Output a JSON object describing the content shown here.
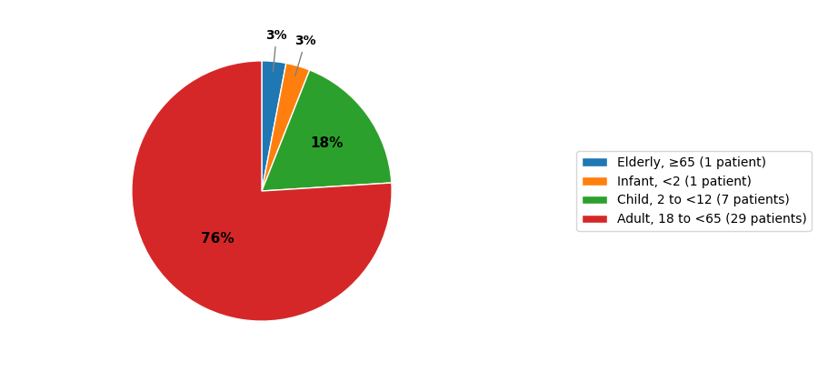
{
  "chart_data": {
    "type": "pie",
    "categories": [
      "Elderly, ≥65 (1 patient)",
      "Infant, <2 (1 patient)",
      "Child, 2 to <12 (7 patients)",
      "Adult, 18 to <65 (29 patients)"
    ],
    "values": [
      3,
      3,
      18,
      76
    ],
    "value_labels": [
      "3%",
      "3%",
      "18%",
      "76%"
    ],
    "data_labels": true,
    "legend": "center right"
  }
}
